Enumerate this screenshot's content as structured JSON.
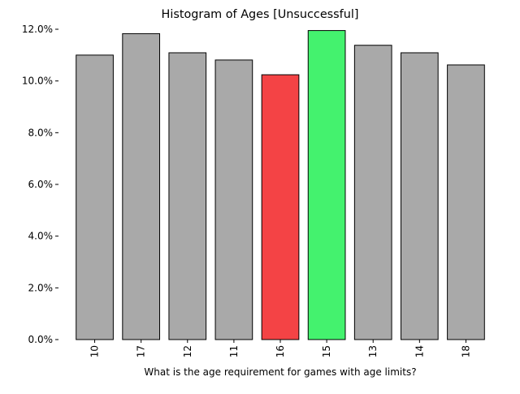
{
  "chart_data": {
    "type": "bar",
    "title": "Histogram of Ages [Unsuccessful]",
    "xlabel": "What is the age requirement for games with age limits?",
    "ylabel": "",
    "categories": [
      "10",
      "17",
      "12",
      "11",
      "16",
      "15",
      "13",
      "14",
      "18"
    ],
    "values": [
      11.0,
      11.83,
      11.09,
      10.81,
      10.24,
      11.95,
      11.38,
      11.09,
      10.62
    ],
    "value_unit": "%",
    "ylim": [
      0,
      12.0
    ],
    "yticks": [
      0,
      2,
      4,
      6,
      8,
      10,
      12
    ],
    "ytick_labels": [
      "0.0%",
      "2.0%",
      "4.0%",
      "6.0%",
      "8.0%",
      "10.0%",
      "12.0%"
    ],
    "grid": false,
    "legend": "none",
    "highlight": {
      "min_category": "16",
      "max_category": "15"
    },
    "colors": {
      "default_bar": "#a9a9a9",
      "min_bar": "#f44345",
      "max_bar": "#44f26e",
      "bar_edge": "#000000"
    }
  }
}
